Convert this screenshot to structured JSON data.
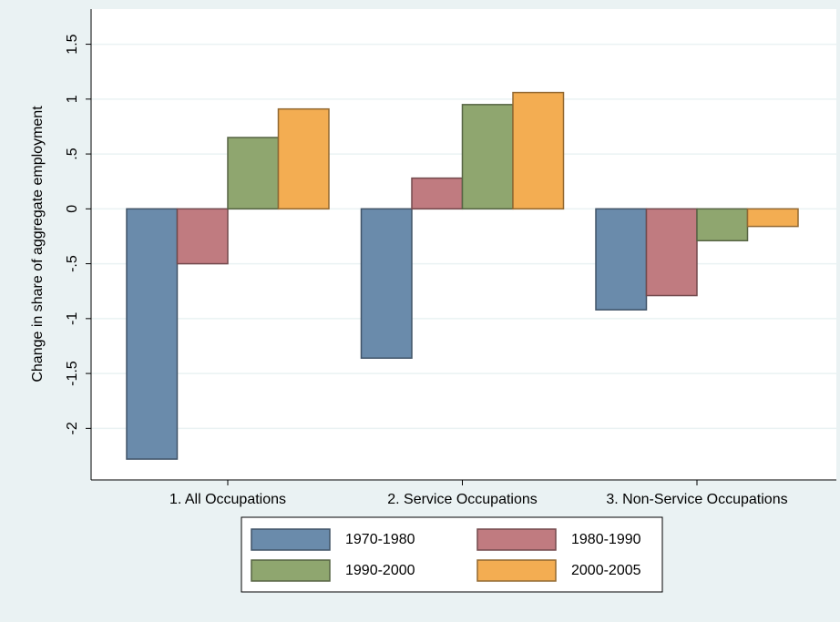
{
  "chart_data": {
    "type": "bar",
    "y_label": "Change in share of aggregate employment",
    "categories": [
      "1. All Occupations",
      "2. Service Occupations",
      "3. Non-Service Occupations"
    ],
    "series": [
      {
        "name": "1970-1980",
        "color": "#6a8bab",
        "values": [
          -2.28,
          -1.36,
          -0.92
        ]
      },
      {
        "name": "1980-1990",
        "color": "#c07b80",
        "values": [
          -0.5,
          0.28,
          -0.79
        ]
      },
      {
        "name": "1990-2000",
        "color": "#8fa66f",
        "values": [
          0.65,
          0.95,
          -0.29
        ]
      },
      {
        "name": "2000-2005",
        "color": "#f3ad52",
        "values": [
          0.91,
          1.06,
          -0.16
        ]
      }
    ],
    "ylim": [
      -2.47,
      1.82
    ],
    "yticks": [
      {
        "value": -2,
        "label": "-2"
      },
      {
        "value": -1.5,
        "label": "-1.5"
      },
      {
        "value": -1,
        "label": "-1"
      },
      {
        "value": -0.5,
        "label": "-.5"
      },
      0,
      {
        "value": 0.5,
        "label": ".5"
      },
      1,
      1.5
    ],
    "grid": true,
    "legend": "bottom"
  }
}
